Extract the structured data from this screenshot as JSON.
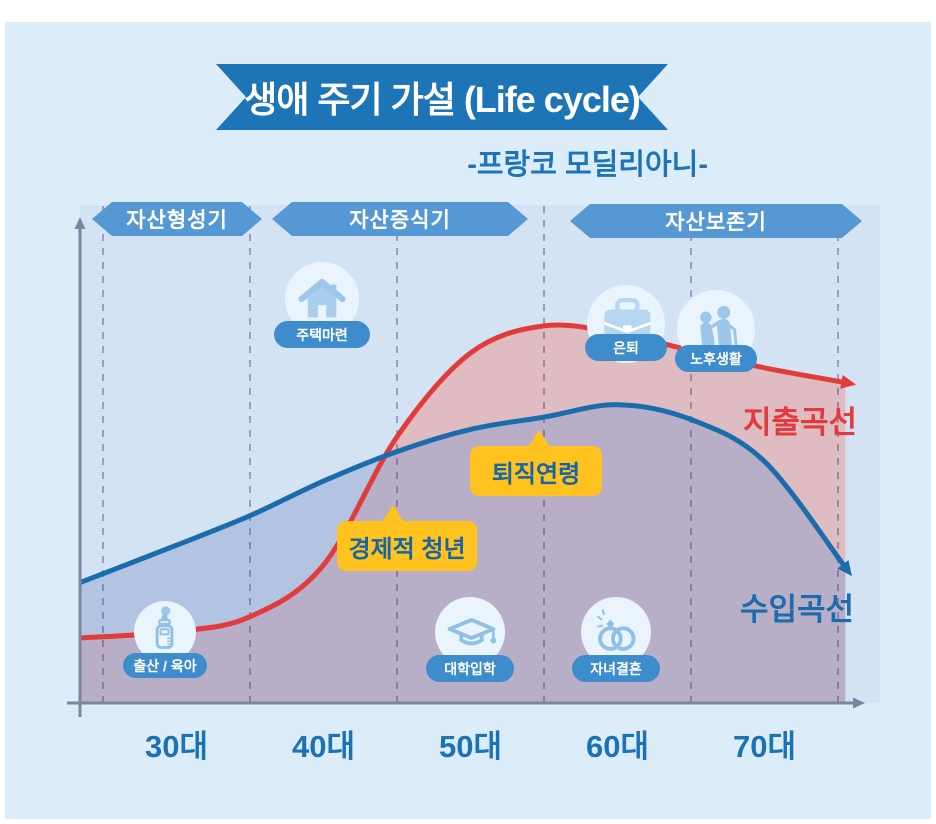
{
  "title": {
    "text": "생애 주기 가설 (Life cycle)",
    "subtitle": "-프랑코 모딜리아니-"
  },
  "phases": [
    {
      "label": "자산형성기"
    },
    {
      "label": "자산증식기"
    },
    {
      "label": "자산보존기"
    }
  ],
  "events": [
    {
      "label": "주택마련",
      "icon": "house-icon"
    },
    {
      "label": "은퇴",
      "icon": "briefcase-icon"
    },
    {
      "label": "노후생활",
      "icon": "elderly-couple-icon"
    },
    {
      "label": "출산 / 육아",
      "icon": "baby-bottle-icon"
    },
    {
      "label": "대학입학",
      "icon": "graduation-cap-icon"
    },
    {
      "label": "자녀결혼",
      "icon": "wedding-rings-icon"
    }
  ],
  "callouts": [
    {
      "label": "경제적 청년"
    },
    {
      "label": "퇴직연령"
    }
  ],
  "curves": {
    "expenditure": "지출곡선",
    "income": "수입곡선"
  },
  "colors": {
    "page_bg": "#ffffff",
    "panel_bg": "#dcedf9",
    "plot_bg": "#d4e3f3",
    "title_banner": "#1d74b6",
    "phase_banner": "#5598d3",
    "accent_yellow": "#ffc21e",
    "callout_text": "#1565a8",
    "pill_bg": "#3f8ccc",
    "income_line": "#1a6cab",
    "expenditure_line": "#e23b3b",
    "axis": "#7b84a0",
    "x_label": "#1b72b4"
  },
  "chart_data": {
    "type": "line",
    "title": "생애 주기 가설 (Life cycle)",
    "subtitle": "프랑코 모딜리아니",
    "x_unit": "age decade (대)",
    "x": [
      28.5,
      35,
      40,
      45,
      50,
      55,
      60,
      65,
      70,
      75,
      80.5
    ],
    "series": [
      {
        "name": "수입곡선",
        "color": "#1a6cab",
        "fill": "#8b9dce",
        "values": [
          24.5,
          32,
          38,
          45,
          51,
          55.5,
          58,
          60.5,
          57.5,
          49,
          27.5
        ]
      },
      {
        "name": "지출곡선",
        "color": "#e23b3b",
        "fill": "#ec8b87",
        "values": [
          13.2,
          14.5,
          17.5,
          28,
          54,
          71,
          76.5,
          75,
          71.5,
          68,
          65
        ]
      }
    ],
    "ylim": [
      0,
      100
    ],
    "x_ticks": [
      "30대",
      "40대",
      "50대",
      "60대",
      "70대"
    ],
    "x_tick_center_ages": [
      35,
      45,
      55,
      65,
      75
    ],
    "x_gridline_ages": [
      30,
      40,
      50,
      60,
      70,
      80
    ],
    "grid": "vertical dashed lines per decade",
    "legend_position": "labels at right ends of lines",
    "annotations": [
      "경제적 청년 (curves cross ~late 40s)",
      "퇴직연령 (~60)"
    ],
    "fills": "translucent area under each curve; overlap renders purple"
  }
}
